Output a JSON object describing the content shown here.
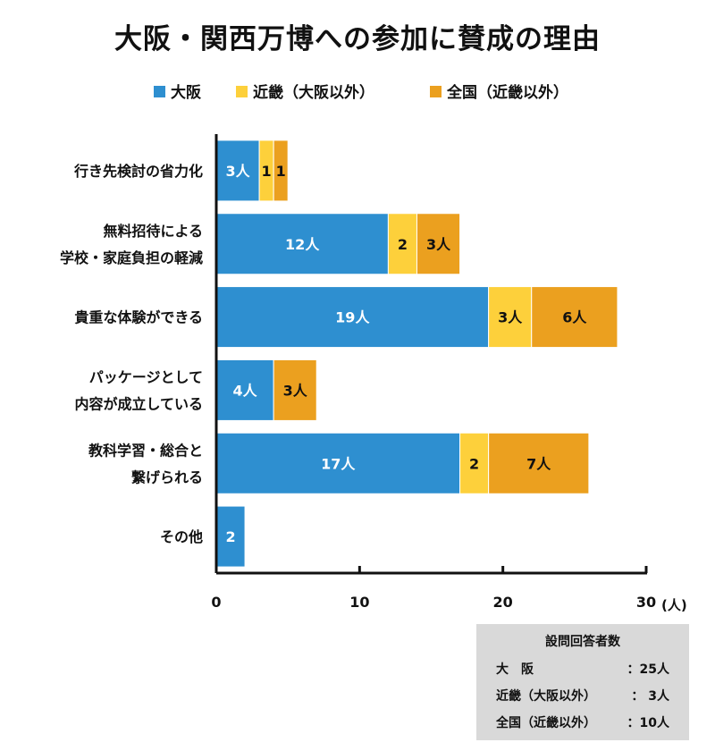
{
  "chart_data": {
    "type": "bar",
    "orientation": "horizontal",
    "stacked": true,
    "title": "大阪・関西万博への参加に賛成の理由",
    "categories": [
      [
        "行き先検討の省力化"
      ],
      [
        "無料招待による",
        "学校・家庭負担の軽減"
      ],
      [
        "貴重な体験ができる"
      ],
      [
        "パッケージとして",
        "内容が成立している"
      ],
      [
        "教科学習・総合と",
        "繋げられる"
      ],
      [
        "その他"
      ]
    ],
    "series": [
      {
        "name": "大阪",
        "color": "#2e8fd0",
        "values": [
          3,
          12,
          19,
          4,
          17,
          2
        ],
        "labels": [
          "3人",
          "12人",
          "19人",
          "4人",
          "17人",
          "2"
        ]
      },
      {
        "name": "近畿（大阪以外）",
        "color": "#fdd03b",
        "values": [
          1,
          2,
          3,
          0,
          2,
          0
        ],
        "labels": [
          "1",
          "2",
          "3人",
          "",
          "2",
          ""
        ]
      },
      {
        "name": "全国（近畿以外）",
        "color": "#eba01f",
        "values": [
          1,
          3,
          6,
          3,
          7,
          0
        ],
        "labels": [
          "1",
          "3人",
          "6人",
          "3人",
          "7人",
          ""
        ]
      }
    ],
    "xlim": [
      0,
      30
    ],
    "xticks": [
      "0",
      "10",
      "20",
      "30"
    ],
    "xunit": "(人)",
    "legend_position": "top"
  },
  "respondents": {
    "title": "設問回答者数",
    "rows": [
      {
        "label": "大　阪",
        "value": "：25人"
      },
      {
        "label": "近畿（大阪以外）",
        "value": "：  3人"
      },
      {
        "label": "全国（近畿以外）",
        "value": "：10人"
      }
    ]
  }
}
